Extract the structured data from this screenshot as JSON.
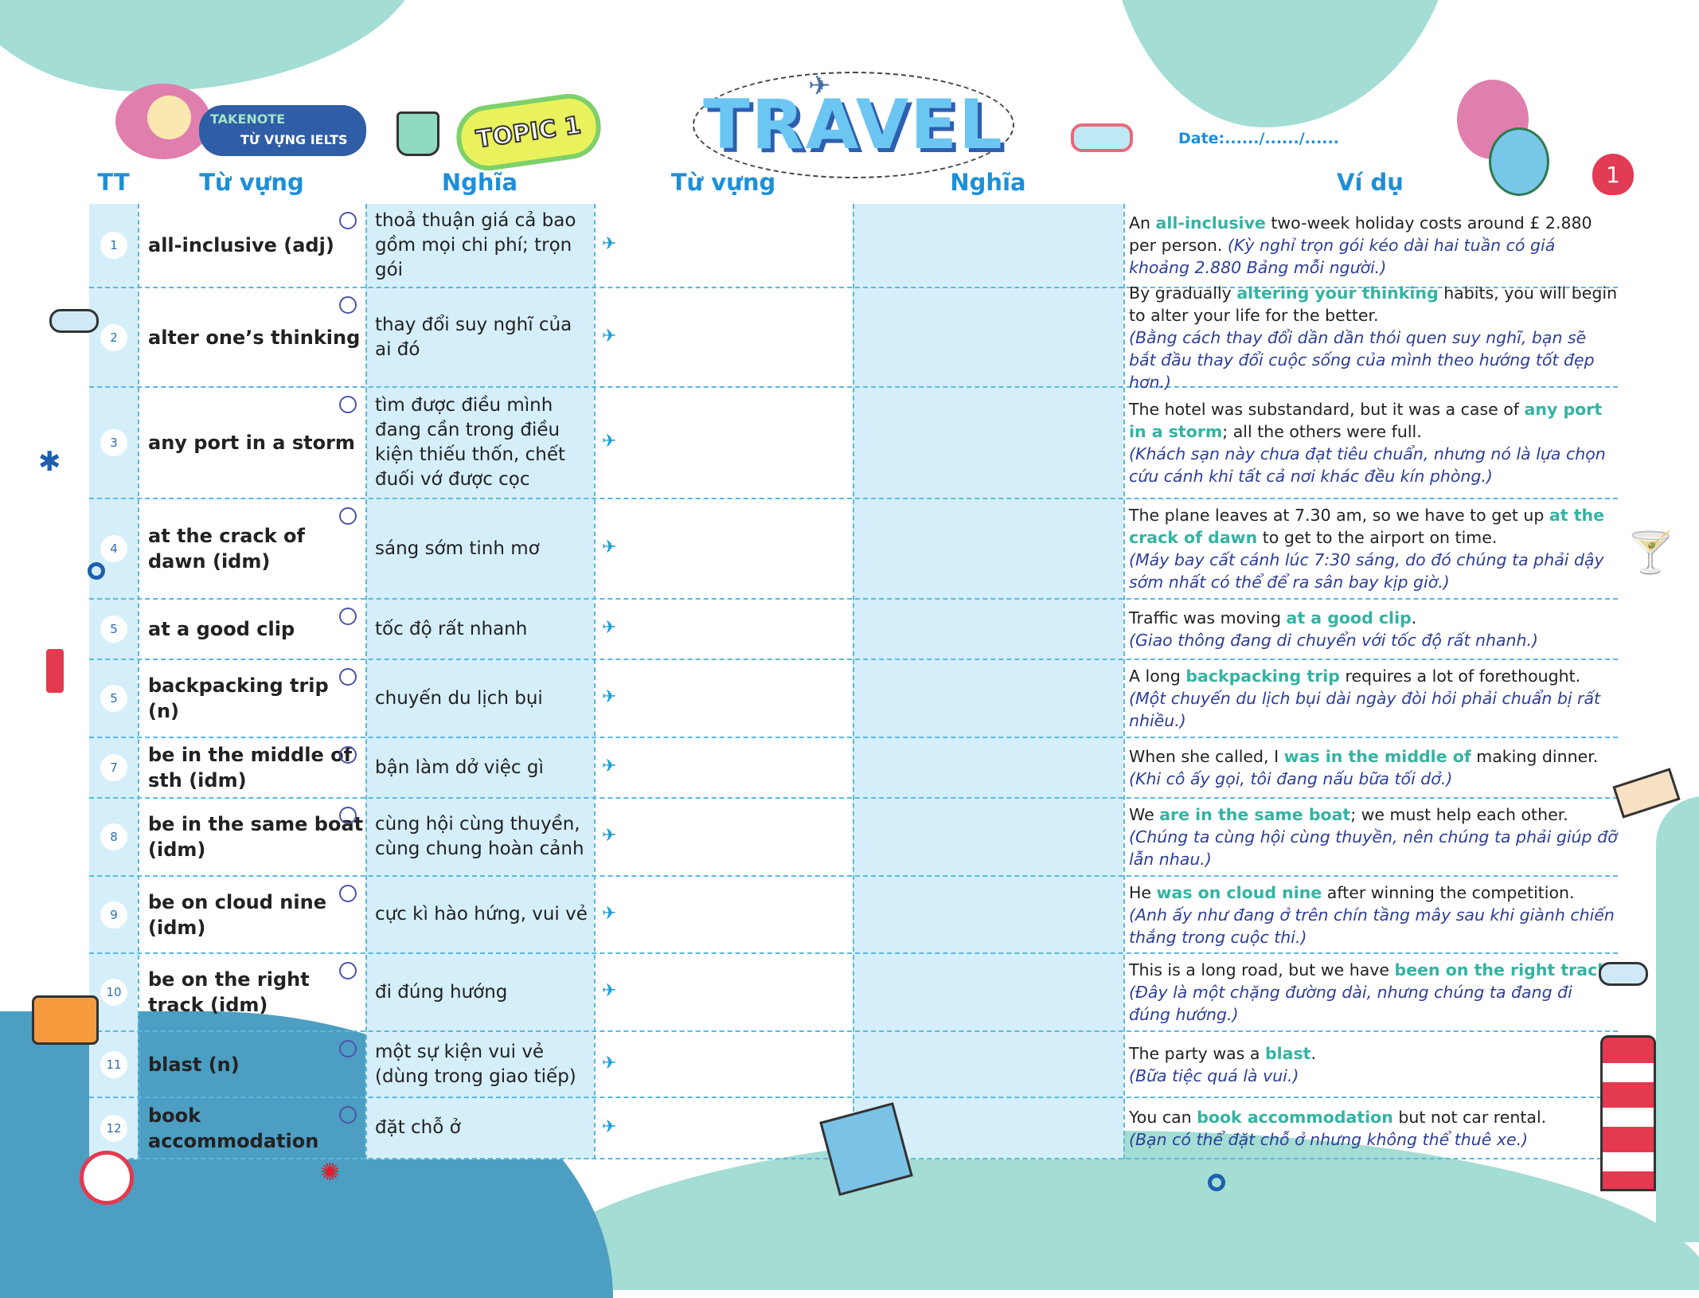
{
  "branding": {
    "takenote": "TAKENOTE",
    "subtitle": "TỪ VỰNG IELTS",
    "topic": "TOPIC 1",
    "title": "TRAVEL",
    "date_label": "Date:....../....../......",
    "page_number": "1"
  },
  "headers": {
    "tt": "TT",
    "word": "Từ vựng",
    "meaning": "Nghĩa",
    "word_blank": "Từ vựng",
    "meaning_blank": "Nghĩa",
    "example": "Ví dụ"
  },
  "colors": {
    "heading_blue": "#1d8fd8",
    "cell_blue": "#d5effa",
    "highlight_teal": "#34b3a3",
    "translation_navy": "#2d3f96",
    "blob_teal": "#a3ddd4"
  },
  "rows": [
    {
      "num": "1",
      "word": "all-inclusive (adj)",
      "meaning": "thoả thuận giá cả bao gồm mọi chi phí; trọn gói",
      "ex_pre": "An ",
      "ex_hl": "all-inclusive",
      "ex_post": " two-week holiday costs around  £ 2.880 per person. ",
      "ex_vi": "(Kỳ nghỉ trọn gói kéo dài hai tuần có giá khoảng 2.880 Bảng mỗi người.)"
    },
    {
      "num": "2",
      "word": "alter one’s thinking",
      "meaning": "thay đổi suy nghĩ của ai đó",
      "ex_pre": "By gradually ",
      "ex_hl": "altering your thinking",
      "ex_post": " habits, you will begin to alter your life for the better.",
      "ex_vi": "(Bằng cách thay đổi dần dần thói quen suy nghĩ, bạn sẽ bắt đầu thay đổi cuộc sống của mình theo hướng tốt đẹp hơn.)"
    },
    {
      "num": "3",
      "word": "any port in a storm",
      "meaning": "tìm được điều mình đang cần trong điều kiện thiếu thốn, chết đuối vớ được cọc",
      "ex_pre": "The hotel was substandard, but it was a case of ",
      "ex_hl": "any port in a storm",
      "ex_post": "; all the others were full.",
      "ex_vi": "(Khách sạn này chưa đạt tiêu chuẩn, nhưng nó là lựa chọn cứu cánh khi tất cả nơi khác đều kín phòng.)"
    },
    {
      "num": "4",
      "word": "at the crack of dawn (idm)",
      "meaning": "sáng sớm tinh mơ",
      "ex_pre": "The plane leaves at 7.30 am, so we have to get up ",
      "ex_hl": "at the crack of dawn",
      "ex_post": " to get to the airport on time.",
      "ex_vi": "(Máy bay cất cánh lúc 7:30 sáng, do đó chúng ta phải dậy sớm nhất có thể để ra sân bay kịp giờ.)"
    },
    {
      "num": "5",
      "word": "at a good clip",
      "meaning": "tốc độ rất nhanh",
      "ex_pre": "Traffic was moving ",
      "ex_hl": "at a good clip",
      "ex_post": ".",
      "ex_vi": "(Giao thông đang di chuyển với tốc độ rất nhanh.)"
    },
    {
      "num": "5",
      "word": "backpacking trip (n)",
      "meaning": "chuyến du lịch bụi",
      "ex_pre": "A long ",
      "ex_hl": "backpacking trip",
      "ex_post": " requires a lot of forethought.",
      "ex_vi": "(Một chuyến du lịch bụi dài ngày đòi hỏi phải chuẩn bị rất nhiều.)"
    },
    {
      "num": "7",
      "word": "be in the middle of sth (idm)",
      "meaning": "bận làm dở việc gì",
      "ex_pre": "When she called, I ",
      "ex_hl": "was in the middle of",
      "ex_post": " making dinner.",
      "ex_vi": "(Khi cô ấy gọi, tôi đang nấu bữa tối dở.)"
    },
    {
      "num": "8",
      "word": "be in the same boat (idm)",
      "meaning": "cùng hội cùng thuyền, cùng chung hoàn cảnh",
      "ex_pre": "We ",
      "ex_hl": "are in the same boat",
      "ex_post": "; we must help each other.",
      "ex_vi": "(Chúng ta cùng hội cùng thuyền, nên chúng ta phải giúp đỡ lẫn nhau.)"
    },
    {
      "num": "9",
      "word": "be on cloud nine (idm)",
      "meaning": "cực kì hào hứng, vui vẻ",
      "ex_pre": "He ",
      "ex_hl": "was on cloud nine",
      "ex_post": " after winning the competition.",
      "ex_vi": "(Anh ấy như đang ở trên chín tầng mây sau khi giành chiến thắng trong cuộc thi.)"
    },
    {
      "num": "10",
      "word": "be on the right track (idm)",
      "meaning": "đi đúng hướng",
      "ex_pre": "This is a long road, but we have ",
      "ex_hl": "been on the right track",
      "ex_post": ".",
      "ex_vi": "(Đây là một chặng đường dài, nhưng chúng ta đang đi đúng hướng.)"
    },
    {
      "num": "11",
      "word": "blast (n)",
      "meaning": "một sự kiện vui vẻ (dùng trong giao tiếp)",
      "ex_pre": "The party was a ",
      "ex_hl": "blast",
      "ex_post": ".",
      "ex_vi": "(Bữa tiệc quá là vui.)"
    },
    {
      "num": "12",
      "word": "book accommodation",
      "meaning": "đặt chỗ ở",
      "ex_pre": "You can ",
      "ex_hl": "book accommodation",
      "ex_post": " but not car rental.",
      "ex_vi": "(Bạn có thể đặt chỗ ở nhưng không thể thuê xe.)"
    }
  ]
}
